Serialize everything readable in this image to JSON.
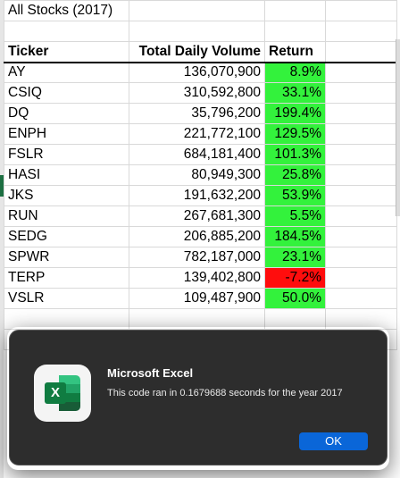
{
  "sheet": {
    "title": "All Stocks (2017)",
    "headers": [
      "Ticker",
      "Total Daily Volume",
      "Return"
    ],
    "rows": [
      {
        "ticker": "AY",
        "volume": "136,070,900",
        "ret": "8.9%",
        "status": "pos"
      },
      {
        "ticker": "CSIQ",
        "volume": "310,592,800",
        "ret": "33.1%",
        "status": "pos"
      },
      {
        "ticker": "DQ",
        "volume": "35,796,200",
        "ret": "199.4%",
        "status": "pos"
      },
      {
        "ticker": "ENPH",
        "volume": "221,772,100",
        "ret": "129.5%",
        "status": "pos"
      },
      {
        "ticker": "FSLR",
        "volume": "684,181,400",
        "ret": "101.3%",
        "status": "pos"
      },
      {
        "ticker": "HASI",
        "volume": "80,949,300",
        "ret": "25.8%",
        "status": "pos"
      },
      {
        "ticker": "JKS",
        "volume": "191,632,200",
        "ret": "53.9%",
        "status": "pos"
      },
      {
        "ticker": "RUN",
        "volume": "267,681,300",
        "ret": "5.5%",
        "status": "pos"
      },
      {
        "ticker": "SEDG",
        "volume": "206,885,200",
        "ret": "184.5%",
        "status": "pos"
      },
      {
        "ticker": "SPWR",
        "volume": "782,187,000",
        "ret": "23.1%",
        "status": "pos"
      },
      {
        "ticker": "TERP",
        "volume": "139,402,800",
        "ret": "-7.2%",
        "status": "neg"
      },
      {
        "ticker": "VSLR",
        "volume": "109,487,900",
        "ret": "50.0%",
        "status": "pos"
      }
    ],
    "colors": {
      "positive": "#33f23c",
      "negative": "#ff0d0d"
    }
  },
  "dialog": {
    "icon": "excel-app-icon",
    "icon_letter": "X",
    "title": "Microsoft Excel",
    "message": "This code ran in 0.1679688 seconds for the year 2017",
    "ok_label": "OK",
    "colors": {
      "background": "#2d2d2d",
      "button": "#0a66d8"
    }
  }
}
